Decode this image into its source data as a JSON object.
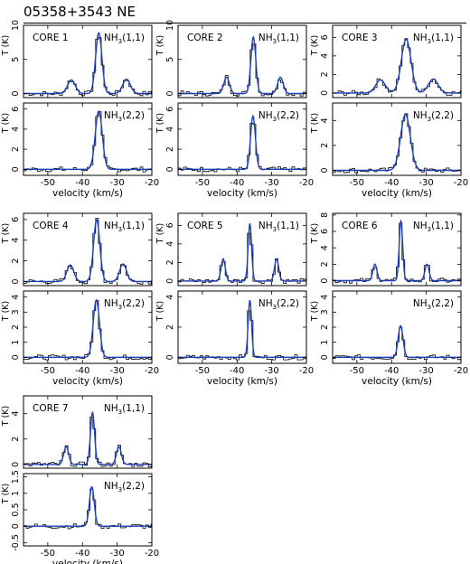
{
  "figure": {
    "title": "05358+3543 NE"
  },
  "axis": {
    "xlabel": "velocity (km/s)",
    "ylabel": "T (K)"
  },
  "colors": {
    "fit": "#1f3fb8",
    "observed": "#000000",
    "frame": "#000000"
  },
  "chart_data": [
    {
      "type": "line",
      "core": "CORE 1",
      "transition": "NH3(1,1)",
      "xlim": [
        -57,
        -20
      ],
      "ylim": [
        -0.6,
        10
      ],
      "yticks": [
        0,
        5,
        10
      ],
      "xticks": [
        -50,
        -40,
        -30,
        -20
      ],
      "series": [
        {
          "kind": "model",
          "components": [
            [
              -43.2,
              2.0,
              1.1
            ],
            [
              -35.3,
              8.9,
              0.9
            ],
            [
              -27.3,
              2.1,
              1.1
            ]
          ]
        }
      ]
    },
    {
      "type": "line",
      "core": "CORE 1",
      "transition": "NH3(2,2)",
      "xlim": [
        -57,
        -20
      ],
      "ylim": [
        -0.6,
        6.6
      ],
      "yticks": [
        0,
        2,
        4,
        6
      ],
      "xticks": [
        -50,
        -40,
        -30,
        -20
      ],
      "series": [
        {
          "kind": "model",
          "components": [
            [
              -35.3,
              5.8,
              1.0
            ]
          ]
        }
      ]
    },
    {
      "type": "line",
      "core": "CORE 2",
      "transition": "NH3(1,1)",
      "xlim": [
        -57,
        -20
      ],
      "ylim": [
        -0.6,
        10
      ],
      "yticks": [
        0,
        5,
        10
      ],
      "xticks": [
        -50,
        -40,
        -30,
        -20
      ],
      "series": [
        {
          "kind": "model",
          "components": [
            [
              -43.0,
              2.4,
              0.8
            ],
            [
              -35.3,
              8.3,
              0.7
            ],
            [
              -27.5,
              2.4,
              0.8
            ]
          ]
        }
      ]
    },
    {
      "type": "line",
      "core": "CORE 2",
      "transition": "NH3(2,2)",
      "xlim": [
        -57,
        -20
      ],
      "ylim": [
        -0.6,
        6.6
      ],
      "yticks": [
        0,
        2,
        4,
        6
      ],
      "xticks": [
        -50,
        -40,
        -30,
        -20
      ],
      "series": [
        {
          "kind": "model",
          "components": [
            [
              -35.4,
              5.3,
              0.7
            ]
          ]
        }
      ]
    },
    {
      "type": "line",
      "core": "CORE 3",
      "transition": "NH3(1,1)",
      "xlim": [
        -57,
        -20
      ],
      "ylim": [
        -0.5,
        7.3
      ],
      "yticks": [
        0,
        2,
        4,
        6
      ],
      "xticks": [
        -50,
        -40,
        -30,
        -20
      ],
      "series": [
        {
          "kind": "model",
          "components": [
            [
              -43.2,
              1.4,
              1.4
            ],
            [
              -35.8,
              5.8,
              1.4
            ],
            [
              -28.0,
              1.5,
              1.4
            ]
          ]
        }
      ]
    },
    {
      "type": "line",
      "core": "CORE 3",
      "transition": "NH3(2,2)",
      "xlim": [
        -57,
        -20
      ],
      "ylim": [
        -0.4,
        5.4
      ],
      "yticks": [
        0,
        2,
        4
      ],
      "xticks": [
        -50,
        -40,
        -30,
        -20
      ],
      "series": [
        {
          "kind": "model",
          "components": [
            [
              -36.0,
              4.5,
              1.4
            ]
          ]
        }
      ]
    },
    {
      "type": "line",
      "core": "CORE 4",
      "transition": "NH3(1,1)",
      "xlim": [
        -57,
        -20
      ],
      "ylim": [
        -0.4,
        6.6
      ],
      "yticks": [
        0,
        2,
        4,
        6
      ],
      "xticks": [
        -50,
        -40,
        -30,
        -20
      ],
      "series": [
        {
          "kind": "model",
          "components": [
            [
              -43.5,
              1.6,
              1.0
            ],
            [
              -35.9,
              6.0,
              0.9
            ],
            [
              -28.3,
              1.7,
              1.0
            ]
          ]
        }
      ]
    },
    {
      "type": "line",
      "core": "CORE 4",
      "transition": "NH3(2,2)",
      "xlim": [
        -57,
        -20
      ],
      "ylim": [
        -0.4,
        4.4
      ],
      "yticks": [
        0,
        1,
        2,
        3,
        4
      ],
      "xticks": [
        -50,
        -40,
        -30,
        -20
      ],
      "series": [
        {
          "kind": "model",
          "components": [
            [
              -36.0,
              3.8,
              0.9
            ]
          ]
        }
      ]
    },
    {
      "type": "line",
      "core": "CORE 5",
      "transition": "NH3(1,1)",
      "xlim": [
        -57,
        -20
      ],
      "ylim": [
        -0.5,
        7.3
      ],
      "yticks": [
        0,
        2,
        4,
        6
      ],
      "xticks": [
        -50,
        -40,
        -30,
        -20
      ],
      "series": [
        {
          "kind": "model",
          "components": [
            [
              -44.0,
              2.4,
              0.6
            ],
            [
              -36.3,
              6.2,
              0.5
            ],
            [
              -28.6,
              2.4,
              0.6
            ]
          ]
        }
      ]
    },
    {
      "type": "line",
      "core": "CORE 5",
      "transition": "NH3(2,2)",
      "xlim": [
        -57,
        -20
      ],
      "ylim": [
        -0.4,
        4.4
      ],
      "yticks": [
        0,
        2,
        4
      ],
      "xticks": [
        -50,
        -40,
        -30,
        -20
      ],
      "series": [
        {
          "kind": "model",
          "components": [
            [
              -36.3,
              3.8,
              0.5
            ]
          ]
        }
      ]
    },
    {
      "type": "line",
      "core": "CORE 6",
      "transition": "NH3(1,1)",
      "xlim": [
        -57,
        -20
      ],
      "ylim": [
        -0.6,
        8.2
      ],
      "yticks": [
        0,
        2,
        4,
        6,
        8
      ],
      "xticks": [
        -50,
        -40,
        -30,
        -20
      ],
      "series": [
        {
          "kind": "model",
          "components": [
            [
              -44.8,
              2.0,
              0.6
            ],
            [
              -37.3,
              7.3,
              0.5
            ],
            [
              -29.8,
              2.0,
              0.6
            ]
          ]
        }
      ]
    },
    {
      "type": "line",
      "core": "CORE 6",
      "transition": "NH3(2,2)",
      "xlim": [
        -57,
        -20
      ],
      "ylim": [
        -0.4,
        4.4
      ],
      "yticks": [
        0,
        1,
        2,
        3,
        4
      ],
      "xticks": [
        -50,
        -40,
        -30,
        -20
      ],
      "series": [
        {
          "kind": "model",
          "components": [
            [
              -37.4,
              2.1,
              0.7
            ]
          ]
        }
      ]
    },
    {
      "type": "line",
      "core": "CORE 7",
      "transition": "NH3(1,1)",
      "xlim": [
        -57,
        -20
      ],
      "ylim": [
        -0.3,
        5.4
      ],
      "yticks": [
        0,
        2,
        4
      ],
      "xticks": [
        -50,
        -40,
        -30,
        -20
      ],
      "series": [
        {
          "kind": "model",
          "components": [
            [
              -44.7,
              1.4,
              0.7
            ],
            [
              -37.1,
              4.1,
              0.6
            ],
            [
              -29.5,
              1.4,
              0.7
            ]
          ]
        }
      ]
    },
    {
      "type": "line",
      "core": "CORE 7",
      "transition": "NH3(2,2)",
      "xlim": [
        -57,
        -20
      ],
      "ylim": [
        -0.6,
        1.6
      ],
      "yticks": [
        -0.5,
        0,
        0.5,
        1,
        1.5
      ],
      "xticks": [
        -50,
        -40,
        -30,
        -20
      ],
      "series": [
        {
          "kind": "model",
          "components": [
            [
              -37.3,
              1.2,
              0.7
            ]
          ]
        }
      ]
    }
  ]
}
